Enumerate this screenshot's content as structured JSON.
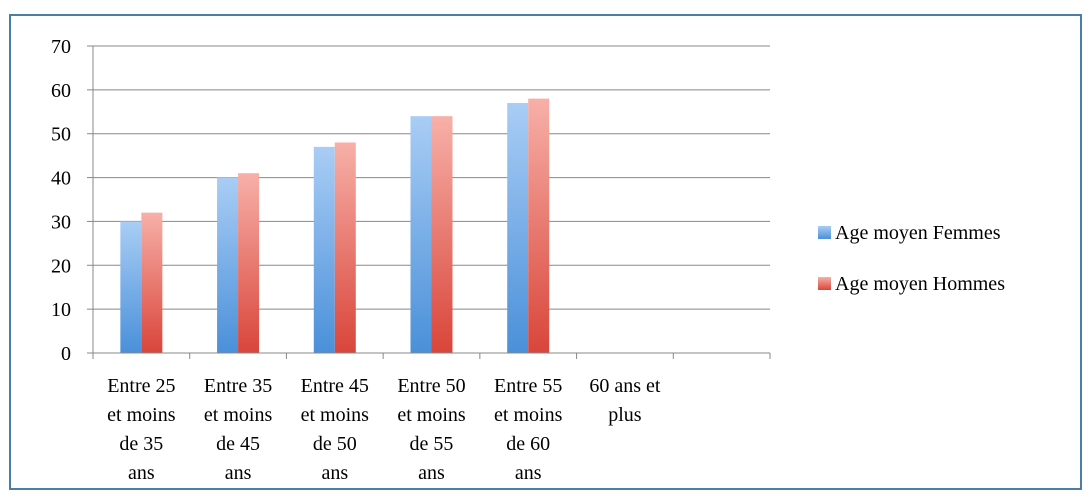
{
  "chart_data": {
    "type": "bar",
    "categories": [
      [
        "Entre 25",
        "et moins",
        "de 35",
        "ans"
      ],
      [
        "Entre 35",
        "et moins",
        "de 45",
        "ans"
      ],
      [
        "Entre 45",
        "et moins",
        "de 50",
        "ans"
      ],
      [
        "Entre 50",
        "et moins",
        "de 55",
        "ans"
      ],
      [
        "Entre 55",
        "et moins",
        "de 60",
        "ans"
      ],
      [
        "60 ans et",
        "plus"
      ],
      []
    ],
    "series": [
      {
        "name": "Age moyen Femmes",
        "values": [
          30,
          40,
          47,
          54,
          57,
          null,
          null
        ],
        "color": "#4a90d9",
        "color_light": "#a9cdf5"
      },
      {
        "name": "Age moyen Hommes",
        "values": [
          32,
          41,
          48,
          54,
          58,
          null,
          null
        ],
        "color": "#d9453a",
        "color_light": "#f7b0a8"
      }
    ],
    "ylim": [
      0,
      70
    ],
    "yticks": [
      0,
      10,
      20,
      30,
      40,
      50,
      60,
      70
    ],
    "grid": true,
    "legend": "right",
    "gridline_color": "#888888"
  }
}
